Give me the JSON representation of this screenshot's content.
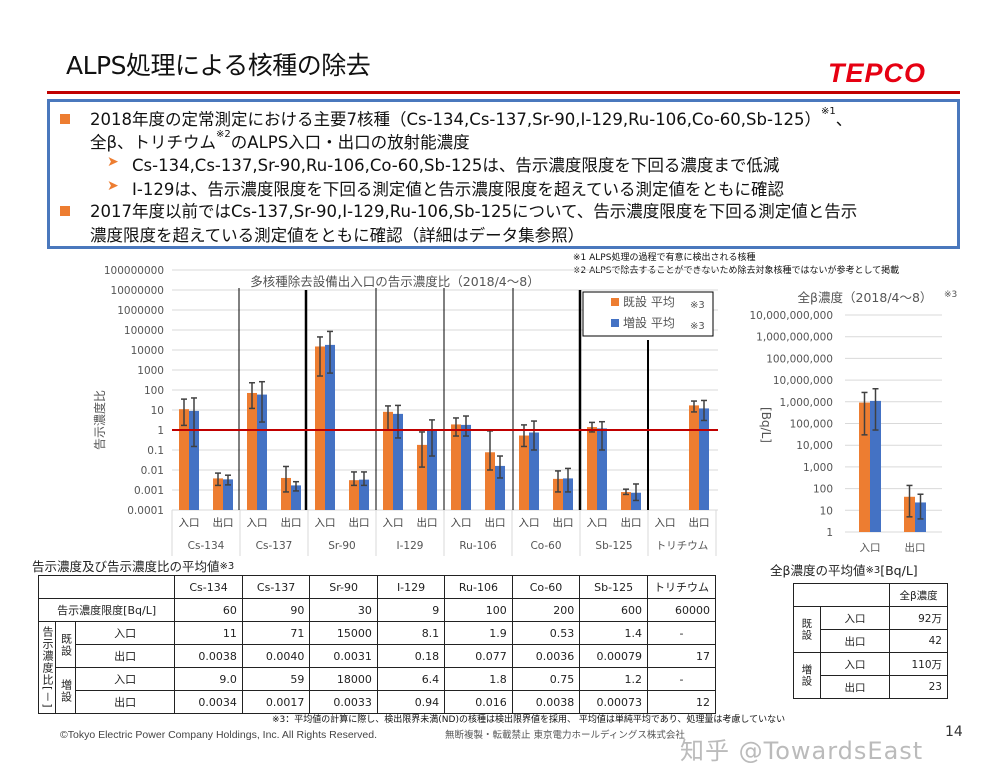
{
  "header": {
    "title": "ALPS処理による核種の除去",
    "logo_text": "TEPCO"
  },
  "summary": {
    "b1_line1": "2018年度の定常測定における主要7核種（Cs-134,Cs-137,Sr-90,I-129,Ru-106,Co-60,Sb-125）",
    "b1_sup1": "※1",
    "b1_tail": "、",
    "b1_line2a": "全β、トリチウム",
    "b1_sup2": "※2",
    "b1_line2b": "のALPS入口・出口の放射能濃度",
    "sub1": "Cs-134,Cs-137,Sr-90,Ru-106,Co-60,Sb-125は、告示濃度限度を下回る濃度まで低減",
    "sub2": "I-129は、告示濃度限度を下回る測定値と告示濃度限度を超えている測定値をともに確認",
    "b2_line1": "2017年度以前ではCs-137,Sr-90,I-129,Ru-106,Sb-125について、告示濃度限度を下回る測定値と告示",
    "b2_line2": "濃度限度を超えている測定値をともに確認（詳細はデータ集参照）"
  },
  "notes": {
    "n1": "※1 ALPS処理の過程で有意に検出される核種",
    "n2": "※2 ALPSで除去することができないため除去対象核種ではないが参考として掲載",
    "n3": "※3：平均値の計算に際し、検出限界未満(ND)の核種は検出限界値を採用、 平均値は単純平均であり、処理量は考慮していない"
  },
  "colors": {
    "existing": "#ED7D31",
    "expanded": "#4472C4",
    "limit_line": "#C00000",
    "error_bar": "#404040"
  },
  "chart_data": [
    {
      "type": "bar",
      "title": "多核種除去設備出入口の告示濃度比（2018/4～8）",
      "ylabel": "告示濃度比",
      "yscale": "log",
      "ylim": [
        0.0001,
        100000000
      ],
      "yticks": [
        "100000000",
        "10000000",
        "1000000",
        "100000",
        "10000",
        "1000",
        "100",
        "10",
        "1",
        "0.1",
        "0.01",
        "0.001",
        "0.0001"
      ],
      "grid": true,
      "reference_line": 1,
      "legend_position": "top-right",
      "groups": [
        "Cs-134",
        "Cs-137",
        "Sr-90",
        "I-129",
        "Ru-106",
        "Co-60",
        "Sb-125",
        "トリチウム"
      ],
      "subcategories": [
        "入口",
        "出口"
      ],
      "series": [
        {
          "name": "既設 平均",
          "note": "※3",
          "values": [
            [
              11,
              0.0038
            ],
            [
              71,
              0.004
            ],
            [
              15000,
              0.0031
            ],
            [
              8.1,
              0.18
            ],
            [
              1.9,
              0.077
            ],
            [
              0.53,
              0.0036
            ],
            [
              1.4,
              0.00079
            ],
            [
              null,
              17
            ]
          ],
          "error_ranges": [
            [
              [
                1.7,
                35
              ],
              [
                0.0017,
                0.007
              ]
            ],
            [
              [
                12,
                230
              ],
              [
                0.0008,
                0.015
              ]
            ],
            [
              [
                500,
                45000
              ],
              [
                0.0017,
                0.008
              ]
            ],
            [
              [
                1,
                16
              ],
              [
                0.014,
                0.8
              ]
            ],
            [
              [
                0.5,
                4
              ],
              [
                0.01,
                0.9
              ]
            ],
            [
              [
                0.15,
                1.8
              ],
              [
                0.0008,
                0.009
              ]
            ],
            [
              [
                0.8,
                2.4
              ],
              [
                0.0006,
                0.0011
              ]
            ],
            [
              null,
              [
                8,
                28
              ]
            ]
          ]
        },
        {
          "name": "増設 平均",
          "note": "※3",
          "values": [
            [
              9.0,
              0.0034
            ],
            [
              59,
              0.0017
            ],
            [
              18000,
              0.0033
            ],
            [
              6.4,
              0.94
            ],
            [
              1.8,
              0.016
            ],
            [
              0.75,
              0.0038
            ],
            [
              1.2,
              0.00073
            ],
            [
              null,
              12
            ]
          ],
          "error_ranges": [
            [
              [
                0.15,
                40
              ],
              [
                0.0018,
                0.0055
              ]
            ],
            [
              [
                2.5,
                260
              ],
              [
                0.0009,
                0.0026
              ]
            ],
            [
              [
                700,
                85000
              ],
              [
                0.0017,
                0.008
              ]
            ],
            [
              [
                0.4,
                17
              ],
              [
                0.05,
                3.2
              ]
            ],
            [
              [
                0.5,
                5
              ],
              [
                0.004,
                0.05
              ]
            ],
            [
              [
                0.1,
                2.8
              ],
              [
                0.0008,
                0.012
              ]
            ],
            [
              [
                0.1,
                2.6
              ],
              [
                0.0003,
                0.002
              ]
            ],
            [
              null,
              [
                3,
                30
              ]
            ]
          ]
        }
      ]
    },
    {
      "type": "bar",
      "title": "全β濃度（2018/4～8）",
      "title_note": "※3",
      "ylabel": "[Bq/L]",
      "yscale": "log",
      "ylim": [
        1,
        10000000000
      ],
      "yticks": [
        "10,000,000,000",
        "1,000,000,000",
        "100,000,000",
        "10,000,000",
        "1,000,000",
        "100,000",
        "10,000",
        "1,000",
        "100",
        "10",
        "1"
      ],
      "grid": true,
      "categories": [
        "入口",
        "出口"
      ],
      "series": [
        {
          "name": "既設",
          "values": [
            920000,
            42
          ],
          "error_ranges": [
            [
              30000,
              2700000
            ],
            [
              5,
              140
            ]
          ]
        },
        {
          "name": "増設",
          "values": [
            1100000,
            23
          ],
          "error_ranges": [
            [
              50000,
              4000000
            ],
            [
              4,
              55
            ]
          ]
        }
      ]
    }
  ],
  "table_main": {
    "caption": "告示濃度及び告示濃度比の平均値",
    "caption_note": "※3",
    "columns": [
      "Cs-134",
      "Cs-137",
      "Sr-90",
      "I-129",
      "Ru-106",
      "Co-60",
      "Sb-125",
      "トリチウム"
    ],
    "limit_label": "告示濃度限度[Bq/L]",
    "limits": [
      "60",
      "90",
      "30",
      "9",
      "100",
      "200",
      "600",
      "60000"
    ],
    "ratio_label": "告示濃度比[－]",
    "existing_label": "既設",
    "expanded_label": "増設",
    "inlet_label": "入口",
    "outlet_label": "出口",
    "existing_in": [
      "11",
      "71",
      "15000",
      "8.1",
      "1.9",
      "0.53",
      "1.4",
      "-"
    ],
    "existing_out": [
      "0.0038",
      "0.0040",
      "0.0031",
      "0.18",
      "0.077",
      "0.0036",
      "0.00079",
      "17"
    ],
    "expanded_in": [
      "9.0",
      "59",
      "18000",
      "6.4",
      "1.8",
      "0.75",
      "1.2",
      "-"
    ],
    "expanded_out": [
      "0.0034",
      "0.0017",
      "0.0033",
      "0.94",
      "0.016",
      "0.0038",
      "0.00073",
      "12"
    ]
  },
  "table_beta": {
    "caption": "全β濃度の平均値",
    "caption_note": "※3",
    "caption_unit": "[Bq/L]",
    "header": "全β濃度",
    "existing_label": "既設",
    "expanded_label": "増設",
    "inlet_label": "入口",
    "outlet_label": "出口",
    "existing_in": "92万",
    "existing_out": "42",
    "expanded_in": "110万",
    "expanded_out": "23"
  },
  "footer": {
    "copyright": "©Tokyo Electric Power Company Holdings, Inc. All Rights Reserved.",
    "notice": "無断複製・転載禁止 東京電力ホールディングス株式会社",
    "watermark": "知乎 @TowardsEast",
    "page": "14"
  }
}
